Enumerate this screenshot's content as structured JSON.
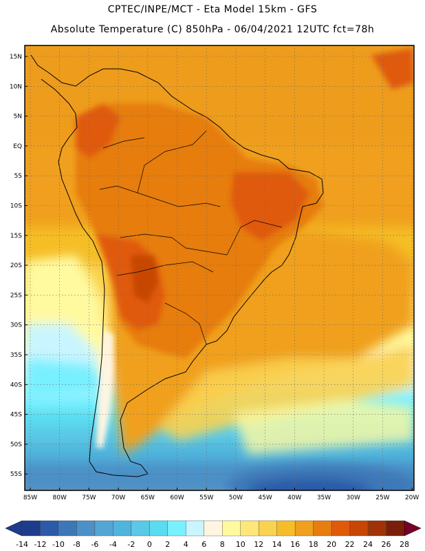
{
  "header": {
    "line1": "CPTEC/INPE/MCT -  Eta Model 15km - GFS",
    "line2": "Absolute Temperature (C) 850hPa - 06/04/2021 12UTC fct=78h"
  },
  "map": {
    "lat_labels": [
      "15N",
      "10N",
      "5N",
      "EQ",
      "5S",
      "10S",
      "15S",
      "20S",
      "25S",
      "30S",
      "35S",
      "40S",
      "45S",
      "50S",
      "55S"
    ],
    "lon_labels": [
      "85W",
      "80W",
      "75W",
      "70W",
      "65W",
      "60W",
      "55W",
      "50W",
      "45W",
      "40W",
      "35W",
      "30W",
      "25W",
      "20W"
    ]
  },
  "colorbar": {
    "labels": [
      "-14",
      "-12",
      "-10",
      "-8",
      "-6",
      "-4",
      "-2",
      "0",
      "2",
      "4",
      "6",
      "8",
      "10",
      "12",
      "14",
      "16",
      "18",
      "20",
      "22",
      "24",
      "26",
      "28"
    ],
    "colors": [
      "#1e3c8c",
      "#2a5aa8",
      "#3c78b8",
      "#4b91c8",
      "#55a5d2",
      "#50b4dc",
      "#5ac8e6",
      "#5adcf0",
      "#78f0ff",
      "#c8f5ff",
      "#fff5e1",
      "#fffaa0",
      "#ffe678",
      "#fad250",
      "#f5be28",
      "#f0a01e",
      "#e67d0f",
      "#e05a0a",
      "#c84605",
      "#a03205",
      "#7a1e0a",
      "#780028"
    ]
  }
}
